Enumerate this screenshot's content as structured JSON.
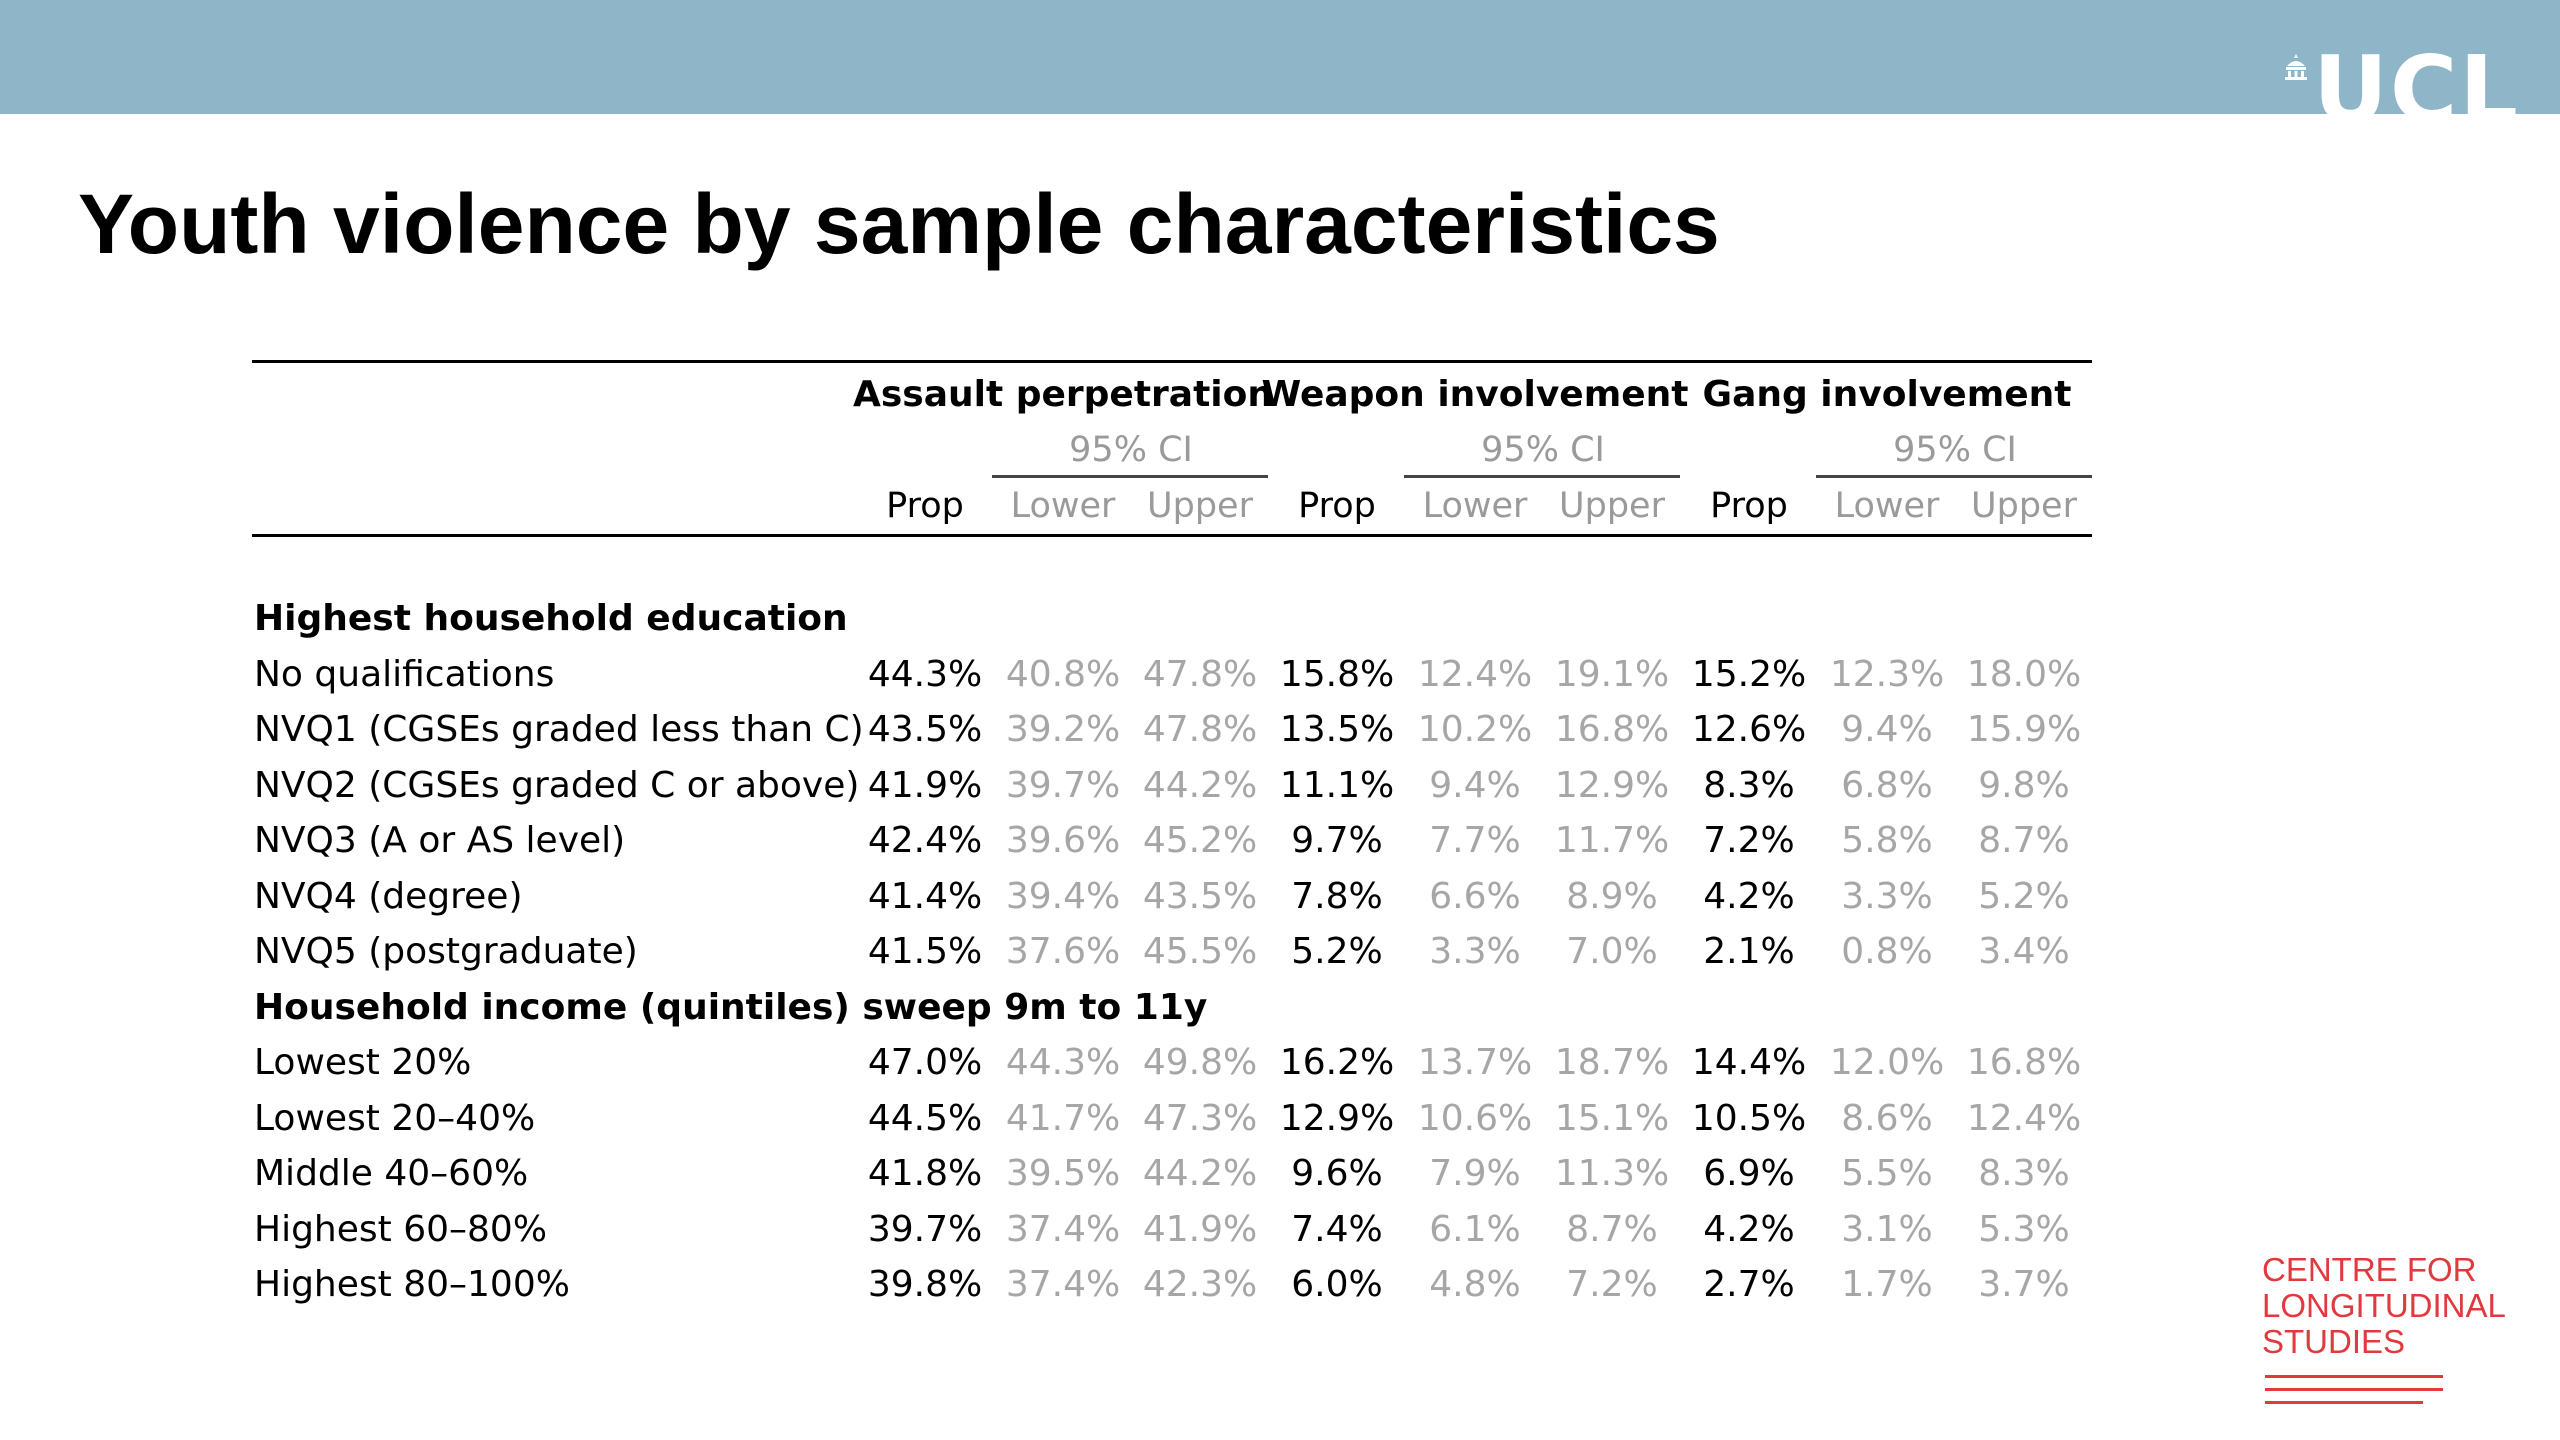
{
  "header": {
    "logo_text": "UCL"
  },
  "slide": {
    "title": "Youth violence by sample characteristics"
  },
  "table": {
    "groups": [
      "Assault perpetration",
      "Weapon involvement",
      "Gang involvement"
    ],
    "ci_label": "95% CI",
    "subheaders": {
      "prop": "Prop",
      "lower": "Lower",
      "upper": "Upper"
    },
    "sections": [
      {
        "title": "Highest household education",
        "rows": [
          {
            "label": "No qualifications",
            "values": [
              "44.3%",
              "40.8%",
              "47.8%",
              "15.8%",
              "12.4%",
              "19.1%",
              "15.2%",
              "12.3%",
              "18.0%"
            ]
          },
          {
            "label": "NVQ1 (CGSEs graded less than C)",
            "values": [
              "43.5%",
              "39.2%",
              "47.8%",
              "13.5%",
              "10.2%",
              "16.8%",
              "12.6%",
              "9.4%",
              "15.9%"
            ]
          },
          {
            "label": "NVQ2 (CGSEs graded C or above)",
            "values": [
              "41.9%",
              "39.7%",
              "44.2%",
              "11.1%",
              "9.4%",
              "12.9%",
              "8.3%",
              "6.8%",
              "9.8%"
            ]
          },
          {
            "label": "NVQ3 (A or AS level)",
            "values": [
              "42.4%",
              "39.6%",
              "45.2%",
              "9.7%",
              "7.7%",
              "11.7%",
              "7.2%",
              "5.8%",
              "8.7%"
            ]
          },
          {
            "label": "NVQ4 (degree)",
            "values": [
              "41.4%",
              "39.4%",
              "43.5%",
              "7.8%",
              "6.6%",
              "8.9%",
              "4.2%",
              "3.3%",
              "5.2%"
            ]
          },
          {
            "label": "NVQ5 (postgraduate)",
            "values": [
              "41.5%",
              "37.6%",
              "45.5%",
              "5.2%",
              "3.3%",
              "7.0%",
              "2.1%",
              "0.8%",
              "3.4%"
            ]
          }
        ]
      },
      {
        "title": "Household income (quintiles) sweep 9m to 11y",
        "rows": [
          {
            "label": "Lowest 20%",
            "values": [
              "47.0%",
              "44.3%",
              "49.8%",
              "16.2%",
              "13.7%",
              "18.7%",
              "14.4%",
              "12.0%",
              "16.8%"
            ]
          },
          {
            "label": "Lowest 20–40%",
            "values": [
              "44.5%",
              "41.7%",
              "47.3%",
              "12.9%",
              "10.6%",
              "15.1%",
              "10.5%",
              "8.6%",
              "12.4%"
            ]
          },
          {
            "label": "Middle 40–60%",
            "values": [
              "41.8%",
              "39.5%",
              "44.2%",
              "9.6%",
              "7.9%",
              "11.3%",
              "6.9%",
              "5.5%",
              "8.3%"
            ]
          },
          {
            "label": "Highest 60–80%",
            "values": [
              "39.7%",
              "37.4%",
              "41.9%",
              "7.4%",
              "6.1%",
              "8.7%",
              "4.2%",
              "3.1%",
              "5.3%"
            ]
          },
          {
            "label": "Highest 80–100%",
            "values": [
              "39.8%",
              "37.4%",
              "42.3%",
              "6.0%",
              "4.8%",
              "7.2%",
              "2.7%",
              "1.7%",
              "3.7%"
            ]
          }
        ]
      }
    ]
  },
  "footer": {
    "centre_lines": [
      "CENTRE FOR",
      "LONGITUDINAL",
      "STUDIES"
    ]
  },
  "colors": {
    "banner": "#8fb5c8",
    "ci_grey": "#a6a6a6",
    "cls_red": "#e03a3e"
  }
}
